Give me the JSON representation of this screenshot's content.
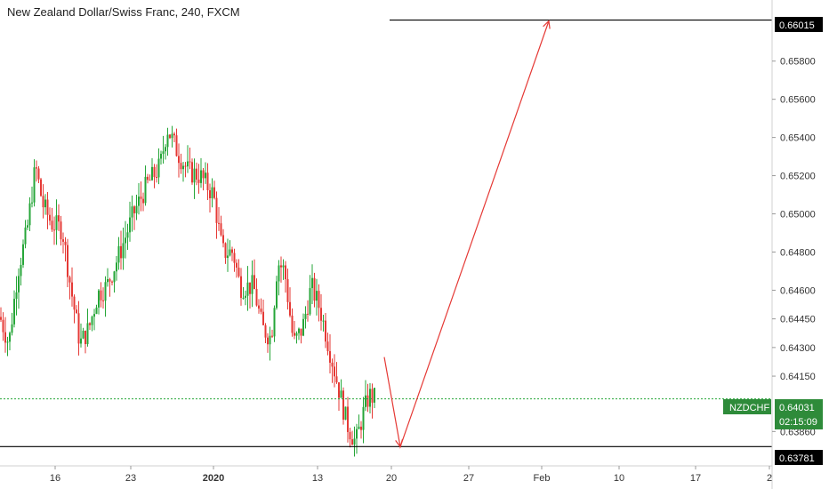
{
  "header": {
    "title": "New Zealand Dollar/Swiss Franc, 240, FXCM"
  },
  "colors": {
    "up": "#26a638",
    "down": "#e53935",
    "arrow": "#e53935",
    "level_line": "#000000",
    "price_line": "#26a638",
    "tag_dark": "#000000",
    "tag_green": "#2e8b3a"
  },
  "chart_data": {
    "type": "candlestick",
    "title": "New Zealand Dollar/Swiss Franc, 240, FXCM",
    "symbol": "NZDCHF",
    "timeframe": "240",
    "ylim": [
      0.6368,
      0.6612
    ],
    "y_ticks": [
      "0.65800",
      "0.65600",
      "0.65400",
      "0.65200",
      "0.65000",
      "0.64800",
      "0.64600",
      "0.64450",
      "0.64300",
      "0.64150",
      "0.63860"
    ],
    "x_ticks": [
      "16",
      "23",
      "2020",
      "13",
      "20",
      "27",
      "Feb",
      "10",
      "17",
      "2"
    ],
    "horizontal_levels": [
      {
        "label": "0.66015",
        "value": 0.66015
      },
      {
        "label": "0.63781",
        "value": 0.63781
      }
    ],
    "current_price": {
      "symbol": "NZDCHF",
      "value": 0.64031,
      "label": "0.64031",
      "countdown": "02:15:09"
    },
    "arrow_path": [
      {
        "date": "2020-01-20",
        "price": 0.6425
      },
      {
        "date": "2020-01-21",
        "price": 0.6378
      },
      {
        "date": "2020-02-03",
        "price": 0.6601
      }
    ],
    "candles_summary": {
      "start_price": 0.645,
      "high": 0.6552,
      "low": 0.6372,
      "last": 0.64031
    }
  },
  "axis": {
    "right_labels": {
      "level_top": "0.66015",
      "price_symbol": "NZDCHF",
      "price_value": "0.64031",
      "countdown": "02:15:09",
      "level_bottom": "0.63781"
    }
  }
}
